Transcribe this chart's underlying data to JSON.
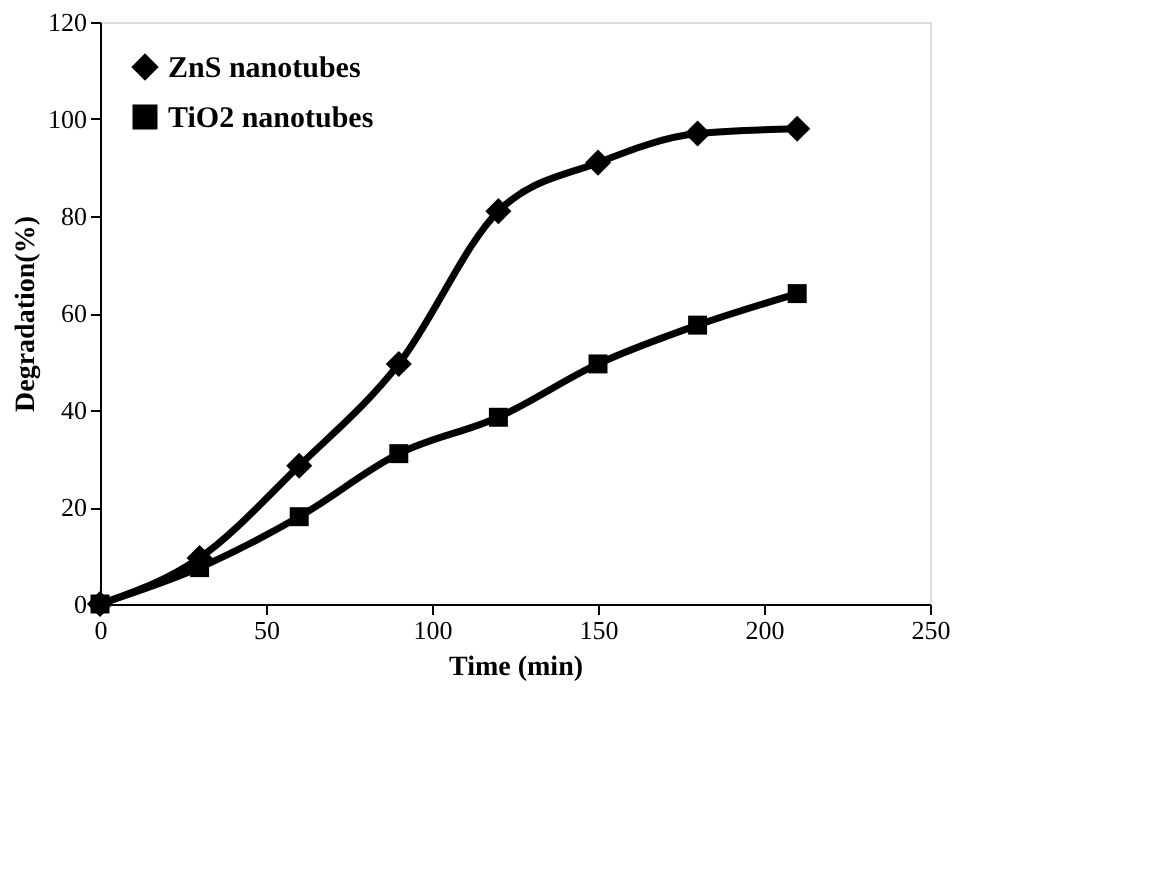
{
  "chart_data": {
    "type": "line",
    "xlabel": "Time (min)",
    "ylabel": "Degradation(%)",
    "x": [
      0,
      30,
      60,
      90,
      120,
      150,
      180,
      210
    ],
    "series": [
      {
        "name": "ZnS nanotubes",
        "color": "#000000",
        "marker": "diamond",
        "values": [
          0,
          9.5,
          28.5,
          49.5,
          81,
          91,
          97,
          98
        ]
      },
      {
        "name": "TiO2 nanotubes",
        "color": "#000000",
        "marker": "square",
        "values": [
          0,
          7.5,
          18,
          31,
          38.5,
          49.5,
          57.5,
          64
        ]
      }
    ],
    "xlim": [
      0,
      250
    ],
    "xticks": [
      0,
      50,
      100,
      150,
      200,
      250
    ],
    "ylim": [
      0,
      120
    ],
    "yticks": [
      0,
      20,
      40,
      60,
      80,
      100,
      120
    ],
    "grid": false,
    "legend": "top left",
    "line_style": "solid"
  }
}
